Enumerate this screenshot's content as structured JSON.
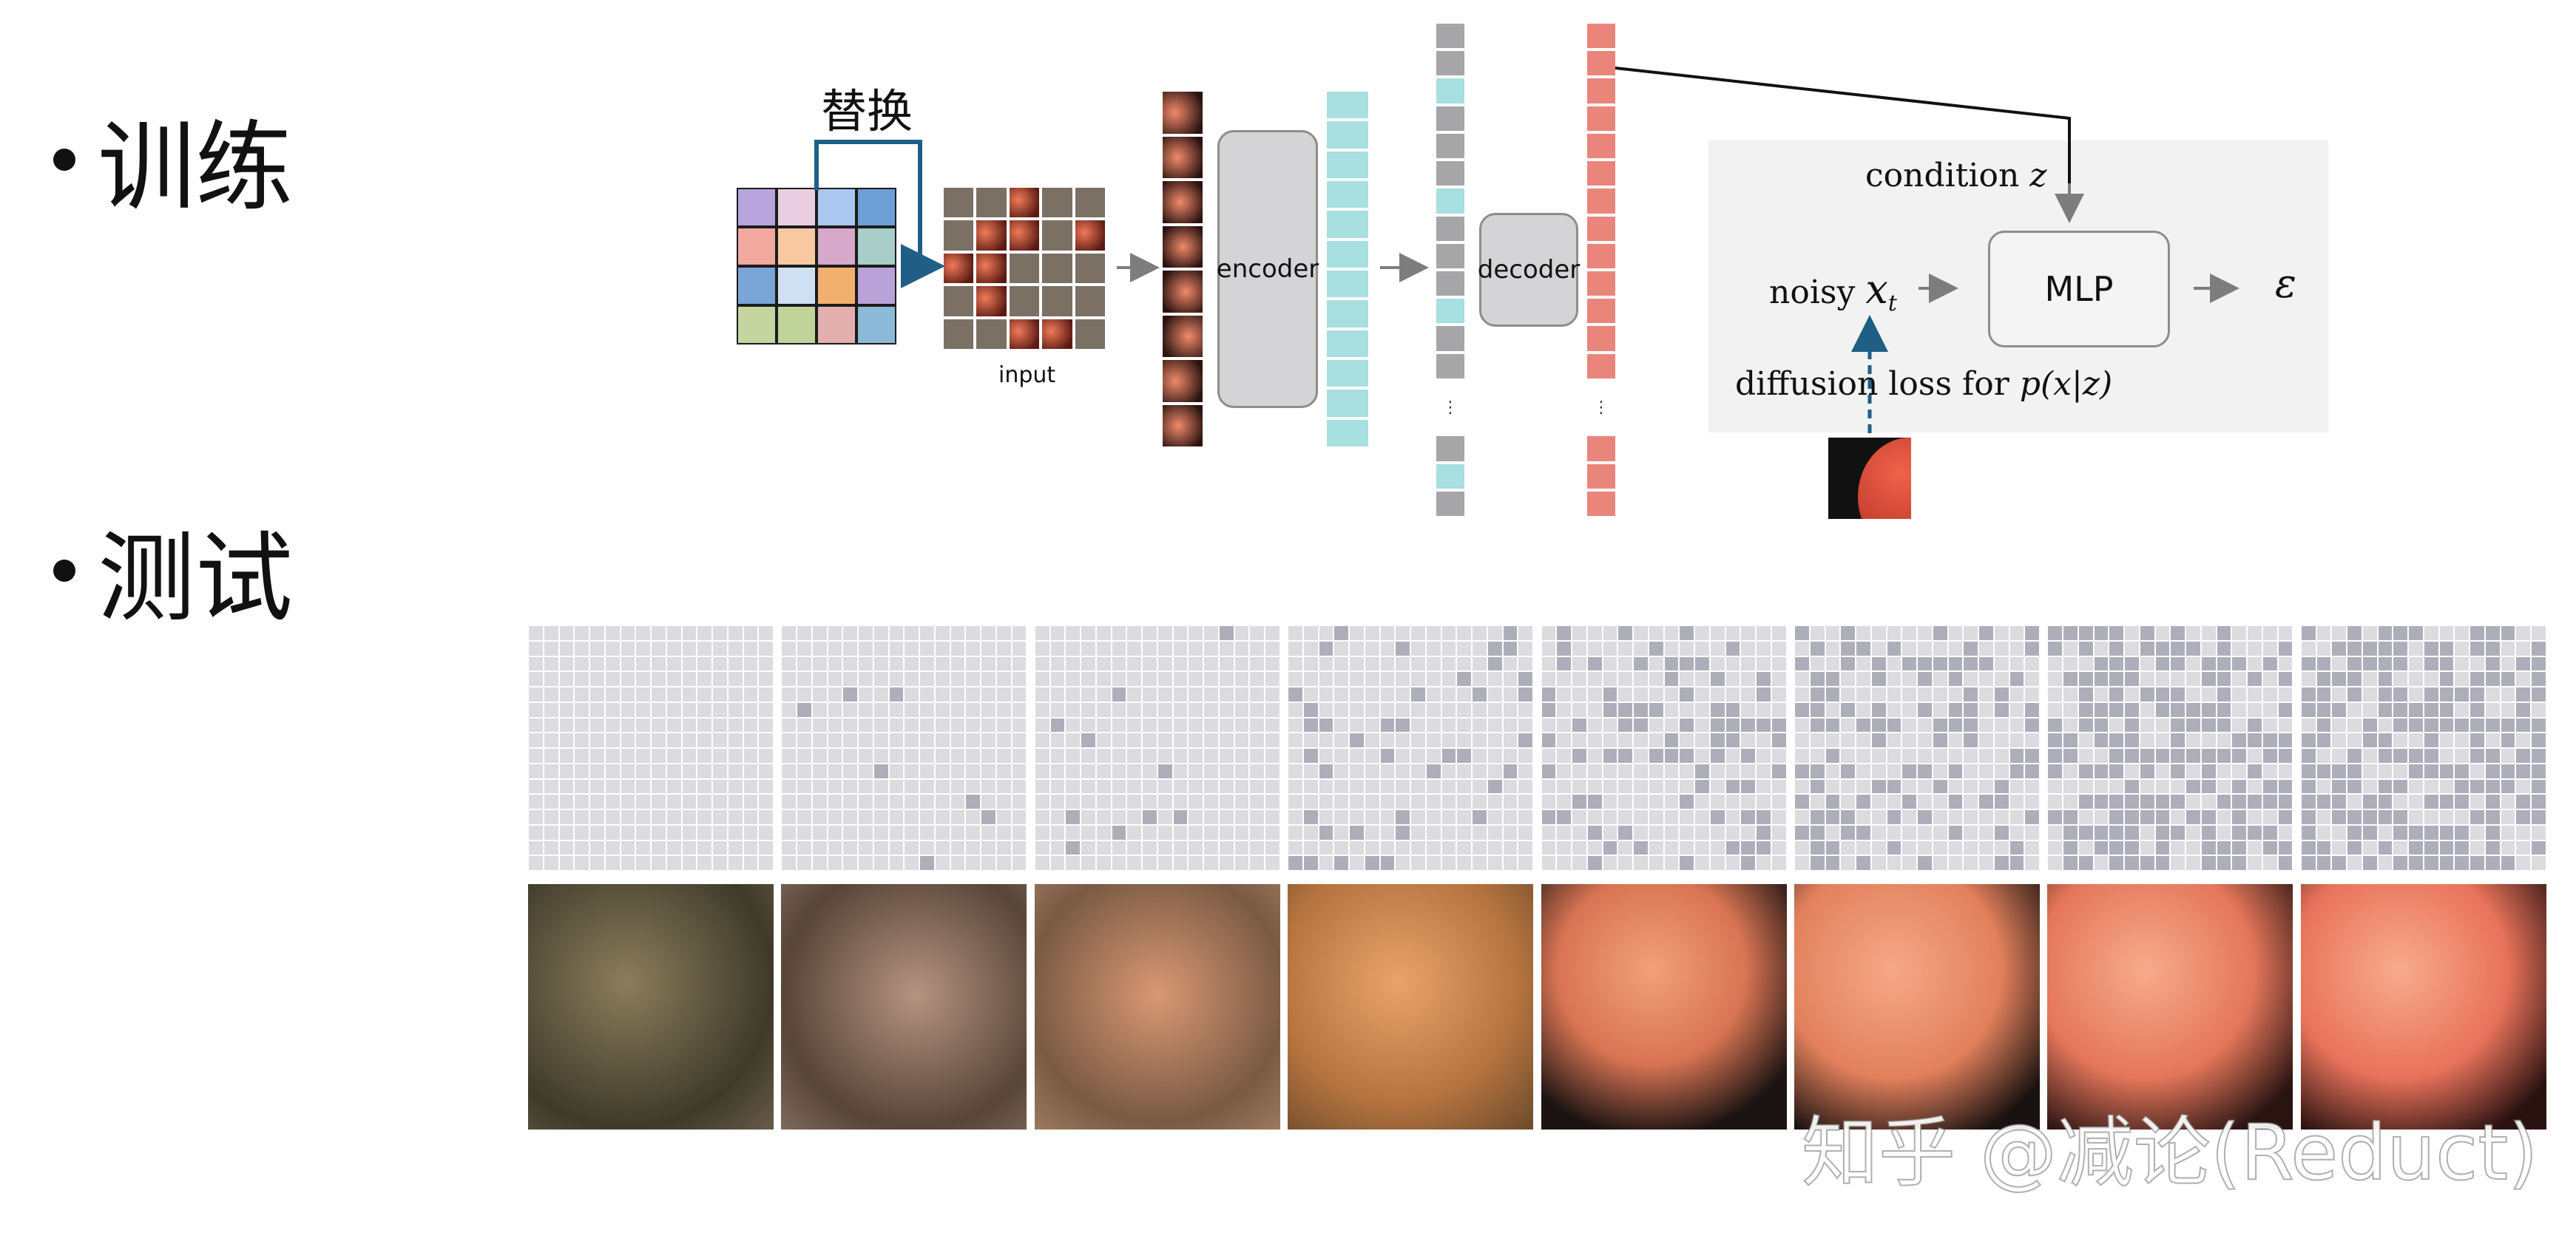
{
  "sections": {
    "train_label": "训练",
    "test_label": "测试"
  },
  "diagram": {
    "replace_label": "替换",
    "input_label": "input",
    "encoder_label": "encoder",
    "decoder_label": "decoder",
    "condition_label": "condition",
    "condition_var": "z",
    "noisy_label": "noisy",
    "noisy_var": "x",
    "noisy_sub": "t",
    "mlp_label": "MLP",
    "epsilon": "ε",
    "loss_label": "diffusion loss for",
    "loss_expr": "p(x|z)",
    "ellipsis": "⋮",
    "colors": {
      "encoder_token": "#a8dfe0",
      "masked_token": "#a6a6a8",
      "decoder_token": "#ea857b",
      "arrow_blue": "#1f5f86",
      "arrow_gray": "#7d7d7d"
    },
    "palette_grid": [
      [
        "#b7a4dc",
        "#e9cde0",
        "#a9c7ef",
        "#6b9fd6"
      ],
      [
        "#f1a89e",
        "#f8c9a0",
        "#d6a8c9",
        "#a8cdc8"
      ],
      [
        "#7aa6d7",
        "#cfe0f3",
        "#f2b06e",
        "#b9a2d8"
      ],
      [
        "#c4d59f",
        "#c0d49a",
        "#e3aeae",
        "#8cb9d7"
      ]
    ]
  },
  "generation_steps": {
    "panel_count": 8,
    "mask_fill_fractions": [
      0.0,
      0.01,
      0.05,
      0.13,
      0.25,
      0.38,
      0.52,
      0.66
    ]
  },
  "watermark": "知乎 @减论(Reduct)"
}
